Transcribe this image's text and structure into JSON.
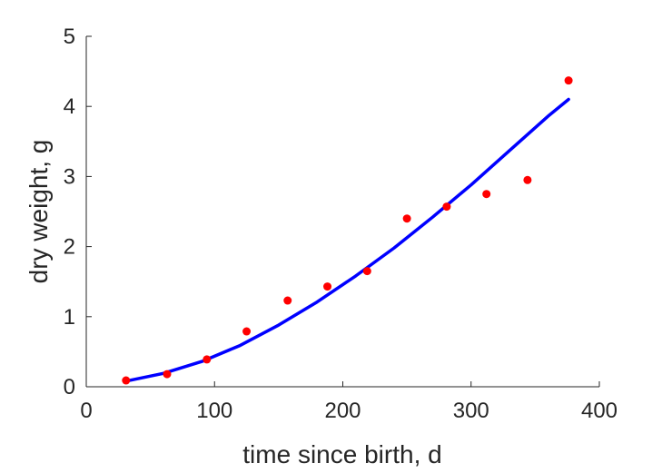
{
  "chart_data": {
    "type": "scatter",
    "title": "",
    "xlabel": "time since birth, d",
    "ylabel": "dry weight, g",
    "xlim": [
      0,
      400
    ],
    "ylim": [
      0,
      5
    ],
    "xticks": [
      0,
      100,
      200,
      300,
      400
    ],
    "yticks": [
      0,
      1,
      2,
      3,
      4,
      5
    ],
    "grid": false,
    "legend": "none",
    "series": [
      {
        "kind": "scatter",
        "color": "#ff0000",
        "x": [
          31,
          63,
          94,
          125,
          157,
          188,
          219,
          250,
          281,
          312,
          344,
          376
        ],
        "y": [
          0.09,
          0.18,
          0.39,
          0.79,
          1.23,
          1.43,
          1.65,
          2.4,
          2.57,
          2.75,
          2.95,
          4.37
        ]
      },
      {
        "kind": "line",
        "color": "#0000ff",
        "x": [
          31,
          60,
          90,
          120,
          150,
          180,
          210,
          240,
          270,
          300,
          330,
          360,
          376
        ],
        "y": [
          0.08,
          0.19,
          0.36,
          0.59,
          0.88,
          1.21,
          1.58,
          1.98,
          2.42,
          2.88,
          3.37,
          3.86,
          4.1
        ]
      }
    ]
  }
}
